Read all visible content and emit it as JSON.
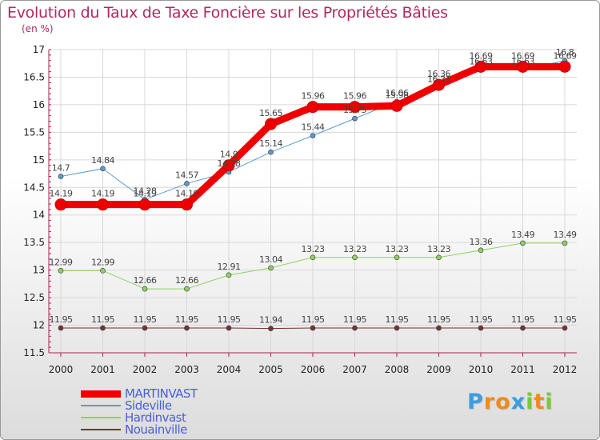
{
  "chart_data": {
    "type": "line",
    "title": "Evolution du Taux de Taxe Foncière sur les Propriétés Bâties",
    "unit": "(en %)",
    "xlabel": "",
    "ylabel": "(en %)",
    "x": [
      "2000",
      "2001",
      "2002",
      "2003",
      "2004",
      "2005",
      "2006",
      "2007",
      "2008",
      "2009",
      "2010",
      "2011",
      "2012"
    ],
    "ylim": [
      11.5,
      17
    ],
    "yticks": [
      "11.5",
      "12",
      "12.5",
      "13",
      "13.5",
      "14",
      "14.5",
      "15",
      "15.5",
      "16",
      "16.5",
      "17"
    ],
    "series": [
      {
        "name": "Sideville",
        "color": "#5b9bd0",
        "values": [
          14.7,
          14.84,
          14.28,
          14.57,
          14.78,
          15.14,
          15.44,
          15.75,
          16.06,
          16.31,
          16.63,
          16.63,
          16.8
        ],
        "labels": [
          "14.7",
          "14.84",
          "14.28",
          "14.57",
          "14.78",
          "15.14",
          "15.44",
          "15.75",
          "16.06",
          "16.31",
          "16.63",
          "16.63",
          "16.8"
        ]
      },
      {
        "name": "Hardinvast",
        "color": "#8fd160",
        "values": [
          12.99,
          12.99,
          12.66,
          12.66,
          12.91,
          13.04,
          13.23,
          13.23,
          13.23,
          13.23,
          13.36,
          13.49,
          13.49
        ],
        "labels": [
          "12.99",
          "12.99",
          "12.66",
          "12.66",
          "12.91",
          "13.04",
          "13.23",
          "13.23",
          "13.23",
          "13.23",
          "13.36",
          "13.49",
          "13.49"
        ]
      },
      {
        "name": "Nouainville",
        "color": "#7a3232",
        "values": [
          11.95,
          11.95,
          11.95,
          11.95,
          11.95,
          11.94,
          11.95,
          11.95,
          11.95,
          11.95,
          11.95,
          11.95,
          11.95
        ],
        "labels": [
          "11.95",
          "11.95",
          "11.95",
          "11.95",
          "11.95",
          "11.94",
          "11.95",
          "11.95",
          "11.95",
          "11.95",
          "11.95",
          "11.95",
          "11.95"
        ]
      },
      {
        "name": "MARTINVAST",
        "color": "#ee0000",
        "values": [
          14.19,
          14.19,
          14.19,
          14.19,
          14.9,
          15.65,
          15.96,
          15.96,
          15.98,
          16.36,
          16.69,
          16.69,
          16.69
        ],
        "labels": [
          "14.19",
          "14.19",
          "14.19",
          "14.19",
          "14.9",
          "15.65",
          "15.96",
          "15.96",
          "15.98",
          "16.36",
          "16.69",
          "16.69",
          "16.69"
        ]
      }
    ],
    "legend": [
      "MARTINVAST",
      "Sideville",
      "Hardinvast",
      "Nouainville"
    ],
    "legend_position": "bottom-left"
  },
  "logo": {
    "letters": [
      "P",
      "r",
      "o",
      "x",
      "i",
      "t",
      "i"
    ],
    "colors": [
      "#3a9de0",
      "#f08a1c",
      "#f08a1c",
      "#3a9de0",
      "#78c83c",
      "#f08a1c",
      "#78c83c"
    ]
  }
}
